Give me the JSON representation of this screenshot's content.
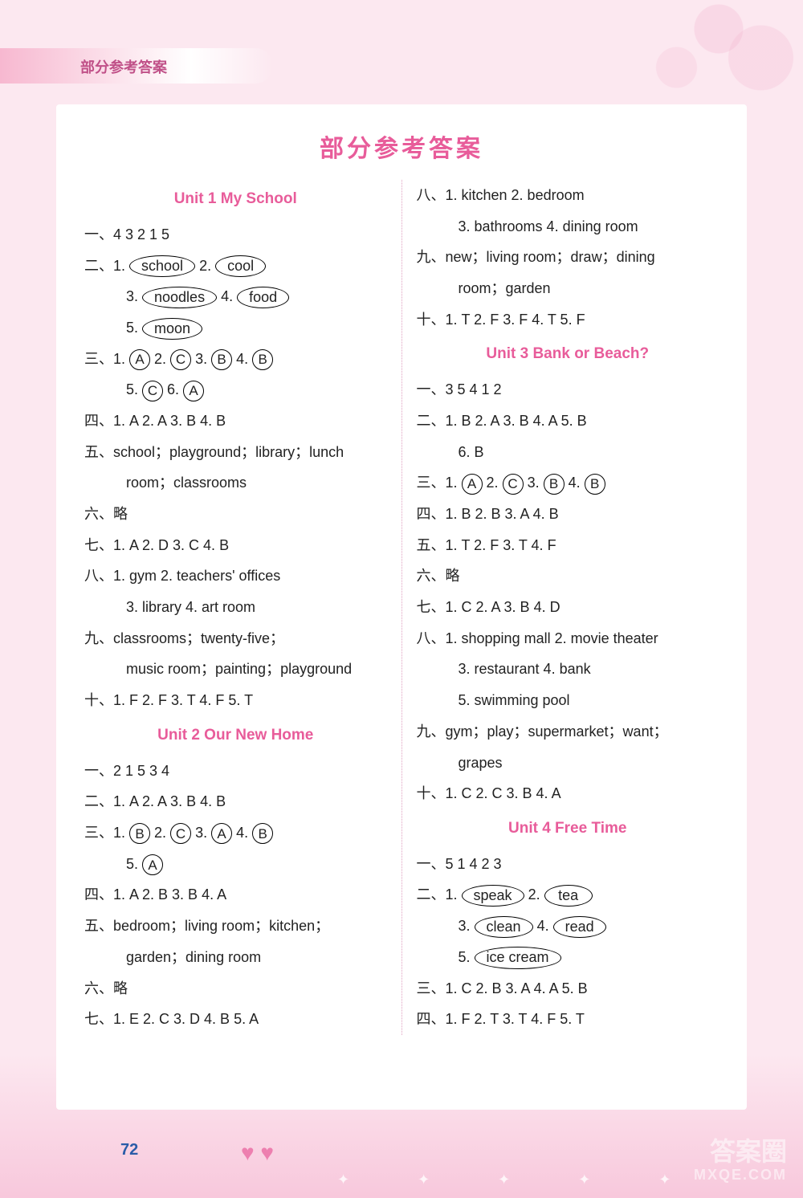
{
  "page": {
    "header_small": "部分参考答案",
    "main_title": "部分参考答案",
    "page_number": "72",
    "watermark_main": "答案圈",
    "watermark_sub": "MXQE.COM"
  },
  "colors": {
    "background": "#fce8f0",
    "page_bg": "#ffffff",
    "accent_pink": "#e85c9a",
    "header_text": "#c05088",
    "body_text": "#222222",
    "page_num": "#2a5ca8",
    "divider": "#e0a0c0"
  },
  "typography": {
    "body_fontsize": 18,
    "title_fontsize": 30,
    "unit_fontsize": 19,
    "line_height": 2.15
  },
  "units": {
    "u1": {
      "title": "Unit 1   My School"
    },
    "u2": {
      "title": "Unit 2   Our New Home"
    },
    "u3": {
      "title": "Unit 3   Bank or Beach?"
    },
    "u4": {
      "title": "Unit 4   Free Time"
    }
  },
  "u1": {
    "q1": "一、4  3  2  1  5",
    "q2p": "二、1. ",
    "q2": {
      "a1": "school",
      "s2": "  2. ",
      "a2": "cool",
      "s3": "3. ",
      "a3": "noodles",
      "s4": "  4. ",
      "a4": "food",
      "s5": "5. ",
      "a5": "moon"
    },
    "q3p": "三、1. ",
    "q3": {
      "a1": "A",
      "s2": "  2. ",
      "a2": "C",
      "s3": "  3. ",
      "a3": "B",
      "s4": "  4. ",
      "a4": "B",
      "s5": "5. ",
      "a5": "C",
      "s6": "  6. ",
      "a6": "A"
    },
    "q4": "四、1. A  2. A  3. B  4. B",
    "q5a": "五、school；playground；library；lunch",
    "q5b": "room；classrooms",
    "q6": "六、略",
    "q7": "七、1. A  2. D  3. C  4. B",
    "q8a": "八、1. gym  2. teachers' offices",
    "q8b": "3. library  4. art room",
    "q9a": "九、classrooms；twenty-five；",
    "q9b": "music room；painting；playground",
    "q10": "十、1. F  2. F  3. T  4. F  5. T"
  },
  "u2": {
    "q1": "一、2  1  5  3  4",
    "q2": "二、1. A  2. A  3. B  4. B",
    "q3p": "三、1. ",
    "q3": {
      "a1": "B",
      "s2": "  2. ",
      "a2": "C",
      "s3": "  3. ",
      "a3": "A",
      "s4": "  4. ",
      "a4": "B",
      "s5": "5. ",
      "a5": "A"
    },
    "q4": "四、1. A  2. B  3. B  4. A",
    "q5a": "五、bedroom；living room；kitchen；",
    "q5b": "garden；dining room",
    "q6": "六、略",
    "q7": "七、1. E  2. C  3. D  4. B  5. A",
    "q8a": "八、1. kitchen  2. bedroom",
    "q8b": "3. bathrooms  4. dining room",
    "q9a": "九、new；living room；draw；dining",
    "q9b": "room；garden",
    "q10": "十、1. T  2. F  3. F  4. T  5. F"
  },
  "u3": {
    "q1": "一、3  5  4  1  2",
    "q2a": "二、1. B  2. A  3. B  4. A  5. B",
    "q2b": "6. B",
    "q3p": "三、1. ",
    "q3": {
      "a1": "A",
      "s2": "  2. ",
      "a2": "C",
      "s3": "  3. ",
      "a3": "B",
      "s4": "  4. ",
      "a4": "B"
    },
    "q4": "四、1. B  2. B  3. A  4. B",
    "q5": "五、1. T  2. F  3. T  4. F",
    "q6": "六、略",
    "q7": "七、1. C  2. A  3. B  4. D",
    "q8a": "八、1. shopping mall  2. movie theater",
    "q8b": "3. restaurant  4. bank",
    "q8c": "5. swimming pool",
    "q9a": "九、gym；play；supermarket；want；",
    "q9b": "grapes",
    "q10": "十、1. C  2. C  3. B  4. A"
  },
  "u4": {
    "q1": "一、5  1  4  2  3",
    "q2p": "二、1. ",
    "q2": {
      "a1": "speak",
      "s2": "  2. ",
      "a2": "tea",
      "s3": "3. ",
      "a3": "clean",
      "s4": "  4. ",
      "a4": "read",
      "s5": "5. ",
      "a5": "ice cream"
    },
    "q3": "三、1. C  2. B  3. A  4. A  5. B",
    "q4": "四、1. F  2. T  3. T  4. F  5. T"
  }
}
